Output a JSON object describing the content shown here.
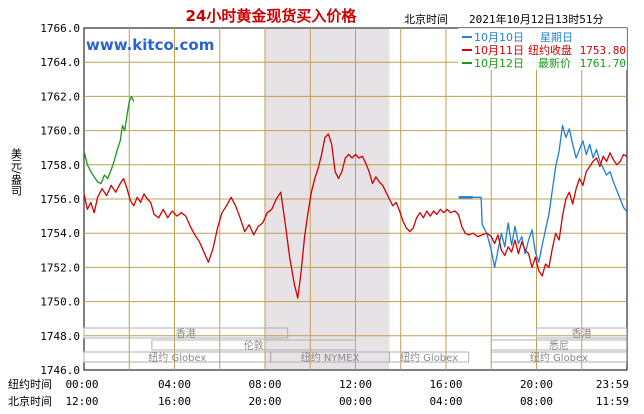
{
  "chart_data": {
    "type": "line",
    "title": "24小时黄金现货买入价格",
    "timezone_label": "北京时间",
    "timestamp": "2021年10月12日13时51分",
    "watermark": "www.kitco.com",
    "ylabel": "美元/盎司",
    "ylim": [
      1746.0,
      1766.0
    ],
    "y_ticks": [
      "1766.0",
      "1764.0",
      "1762.0",
      "1760.0",
      "1758.0",
      "1756.0",
      "1754.0",
      "1752.0",
      "1750.0",
      "1748.0",
      "1746.0"
    ],
    "x_label_ny": "纽约时间",
    "x_ticks_ny": [
      "00:00",
      "04:00",
      "08:00",
      "12:00",
      "16:00",
      "20:00",
      "23:59"
    ],
    "x_label_bj": "北京时间",
    "x_ticks_bj": [
      "12:00",
      "16:00",
      "20:00",
      "00:00",
      "04:00",
      "08:00",
      "11:59"
    ],
    "grid": true,
    "legend_position": "top-right",
    "colors": {
      "series1": "#1f7fd6",
      "series2": "#d40000",
      "series3": "#1a9a1a",
      "watermark": "#2a62d8",
      "title": "#cc0000",
      "shade": "#e6e2e6",
      "grid": "#bfa050"
    },
    "legend": [
      {
        "date": "10月10日",
        "text": "星期日",
        "value": ""
      },
      {
        "date": "10月11日",
        "text": "纽约收盘",
        "value": "1753.80"
      },
      {
        "date": "10月12日",
        "text": "最新价",
        "value": "1761.70"
      }
    ],
    "markets": [
      {
        "name": "香港",
        "row": 0,
        "start": 0.0,
        "end": 9.0
      },
      {
        "name": "伦敦",
        "row": 1,
        "start": 3.0,
        "end": 12.0
      },
      {
        "name": "纽约 NYMEX",
        "row": 2,
        "start": 8.25,
        "end": 13.5
      },
      {
        "name": "纽约 Globex",
        "row": 2,
        "start": 0.0,
        "end": 8.25
      },
      {
        "name": "纽约 Globex",
        "row": 2,
        "start": 13.5,
        "end": 17.0
      },
      {
        "name": "香港",
        "row": 0,
        "start": 20.0,
        "end": 23.98
      },
      {
        "name": "悉尼",
        "row": 1,
        "start": 18.0,
        "end": 23.98
      },
      {
        "name": "纽约 Globex",
        "row": 2,
        "start": 18.0,
        "end": 23.98
      }
    ],
    "shaded_range": [
      8.0,
      13.5
    ],
    "series": [
      {
        "name": "10月10日",
        "points": [
          [
            17.0,
            1756.1
          ],
          [
            17.2,
            1756.1
          ],
          [
            17.4,
            1756.1
          ],
          [
            17.55,
            1756.1
          ],
          [
            17.6,
            1754.5
          ],
          [
            17.8,
            1754.0
          ],
          [
            18.0,
            1753.0
          ],
          [
            18.15,
            1752.0
          ],
          [
            18.3,
            1753.0
          ],
          [
            18.45,
            1754.0
          ],
          [
            18.6,
            1753.2
          ],
          [
            18.75,
            1754.6
          ],
          [
            18.9,
            1753.3
          ],
          [
            19.05,
            1754.4
          ],
          [
            19.2,
            1753.4
          ],
          [
            19.35,
            1753.8
          ],
          [
            19.5,
            1752.8
          ],
          [
            19.65,
            1753.6
          ],
          [
            19.8,
            1754.2
          ],
          [
            19.95,
            1752.9
          ],
          [
            20.1,
            1752.3
          ],
          [
            20.25,
            1753.3
          ],
          [
            20.4,
            1754.2
          ],
          [
            20.55,
            1755.1
          ],
          [
            20.7,
            1756.5
          ],
          [
            20.85,
            1757.9
          ],
          [
            21.0,
            1758.8
          ],
          [
            21.15,
            1760.3
          ],
          [
            21.3,
            1759.6
          ],
          [
            21.45,
            1760.1
          ],
          [
            21.6,
            1759.2
          ],
          [
            21.75,
            1758.4
          ],
          [
            21.9,
            1758.9
          ],
          [
            22.05,
            1759.4
          ],
          [
            22.2,
            1758.6
          ],
          [
            22.35,
            1759.2
          ],
          [
            22.5,
            1758.4
          ],
          [
            22.65,
            1758.9
          ],
          [
            22.8,
            1758.2
          ],
          [
            22.95,
            1757.8
          ],
          [
            23.1,
            1757.4
          ],
          [
            23.25,
            1757.6
          ],
          [
            23.4,
            1757.0
          ],
          [
            23.55,
            1756.5
          ],
          [
            23.7,
            1756.0
          ],
          [
            23.85,
            1755.5
          ],
          [
            23.98,
            1755.3
          ]
        ]
      },
      {
        "name": "10月11日",
        "points": [
          [
            0.0,
            1756.3
          ],
          [
            0.15,
            1755.4
          ],
          [
            0.3,
            1755.8
          ],
          [
            0.45,
            1755.2
          ],
          [
            0.6,
            1756.1
          ],
          [
            0.8,
            1756.6
          ],
          [
            1.0,
            1756.2
          ],
          [
            1.2,
            1756.8
          ],
          [
            1.4,
            1756.4
          ],
          [
            1.6,
            1756.9
          ],
          [
            1.75,
            1757.2
          ],
          [
            1.9,
            1756.6
          ],
          [
            2.05,
            1755.9
          ],
          [
            2.2,
            1755.6
          ],
          [
            2.35,
            1756.1
          ],
          [
            2.5,
            1755.8
          ],
          [
            2.65,
            1756.3
          ],
          [
            2.8,
            1756.0
          ],
          [
            2.95,
            1755.8
          ],
          [
            3.1,
            1755.1
          ],
          [
            3.3,
            1754.9
          ],
          [
            3.5,
            1755.4
          ],
          [
            3.7,
            1754.9
          ],
          [
            3.9,
            1755.3
          ],
          [
            4.1,
            1755.0
          ],
          [
            4.3,
            1755.2
          ],
          [
            4.5,
            1755.0
          ],
          [
            4.7,
            1754.4
          ],
          [
            4.9,
            1753.9
          ],
          [
            5.1,
            1753.5
          ],
          [
            5.3,
            1752.9
          ],
          [
            5.5,
            1752.3
          ],
          [
            5.7,
            1753.1
          ],
          [
            5.9,
            1754.3
          ],
          [
            6.1,
            1755.2
          ],
          [
            6.3,
            1755.6
          ],
          [
            6.5,
            1756.1
          ],
          [
            6.7,
            1755.6
          ],
          [
            6.9,
            1754.9
          ],
          [
            7.1,
            1754.1
          ],
          [
            7.3,
            1754.5
          ],
          [
            7.5,
            1753.9
          ],
          [
            7.7,
            1754.4
          ],
          [
            7.9,
            1754.6
          ],
          [
            8.1,
            1755.2
          ],
          [
            8.3,
            1755.4
          ],
          [
            8.5,
            1756.0
          ],
          [
            8.7,
            1756.4
          ],
          [
            8.9,
            1754.5
          ],
          [
            9.1,
            1752.5
          ],
          [
            9.3,
            1751.0
          ],
          [
            9.45,
            1750.2
          ],
          [
            9.6,
            1751.8
          ],
          [
            9.75,
            1753.8
          ],
          [
            9.9,
            1755.2
          ],
          [
            10.05,
            1756.4
          ],
          [
            10.2,
            1757.2
          ],
          [
            10.35,
            1757.8
          ],
          [
            10.5,
            1758.6
          ],
          [
            10.65,
            1759.6
          ],
          [
            10.8,
            1759.8
          ],
          [
            10.95,
            1759.2
          ],
          [
            11.1,
            1757.6
          ],
          [
            11.25,
            1757.2
          ],
          [
            11.4,
            1757.6
          ],
          [
            11.55,
            1758.4
          ],
          [
            11.7,
            1758.6
          ],
          [
            11.85,
            1758.4
          ],
          [
            12.0,
            1758.6
          ],
          [
            12.15,
            1758.4
          ],
          [
            12.3,
            1758.5
          ],
          [
            12.45,
            1758.1
          ],
          [
            12.6,
            1757.6
          ],
          [
            12.75,
            1756.9
          ],
          [
            12.9,
            1757.3
          ],
          [
            13.05,
            1757.0
          ],
          [
            13.2,
            1756.8
          ],
          [
            13.35,
            1756.4
          ],
          [
            13.5,
            1756.0
          ],
          [
            13.65,
            1755.6
          ],
          [
            13.8,
            1755.8
          ],
          [
            13.95,
            1755.3
          ],
          [
            14.1,
            1754.7
          ],
          [
            14.25,
            1754.3
          ],
          [
            14.4,
            1754.1
          ],
          [
            14.55,
            1754.3
          ],
          [
            14.7,
            1754.9
          ],
          [
            14.85,
            1755.2
          ],
          [
            15.0,
            1754.9
          ],
          [
            15.15,
            1755.3
          ],
          [
            15.3,
            1755.0
          ],
          [
            15.45,
            1755.3
          ],
          [
            15.6,
            1755.1
          ],
          [
            15.75,
            1755.4
          ],
          [
            15.9,
            1755.2
          ],
          [
            16.05,
            1755.4
          ],
          [
            16.2,
            1755.2
          ],
          [
            16.4,
            1755.3
          ],
          [
            16.55,
            1755.1
          ],
          [
            16.7,
            1754.4
          ],
          [
            16.85,
            1754.0
          ],
          [
            17.0,
            1753.9
          ],
          [
            17.2,
            1754.0
          ],
          [
            17.4,
            1753.8
          ],
          [
            17.6,
            1753.9
          ],
          [
            17.8,
            1754.0
          ],
          [
            18.0,
            1753.8
          ],
          [
            18.15,
            1753.4
          ],
          [
            18.3,
            1753.9
          ],
          [
            18.45,
            1753.0
          ],
          [
            18.6,
            1752.7
          ],
          [
            18.75,
            1753.2
          ],
          [
            18.9,
            1752.9
          ],
          [
            19.05,
            1753.6
          ],
          [
            19.2,
            1752.8
          ],
          [
            19.35,
            1753.5
          ],
          [
            19.5,
            1753.0
          ],
          [
            19.65,
            1752.8
          ],
          [
            19.8,
            1752.0
          ],
          [
            19.95,
            1752.6
          ],
          [
            20.1,
            1751.8
          ],
          [
            20.25,
            1751.5
          ],
          [
            20.4,
            1752.2
          ],
          [
            20.55,
            1752.0
          ],
          [
            20.7,
            1753.1
          ],
          [
            20.85,
            1754.0
          ],
          [
            21.0,
            1753.6
          ],
          [
            21.15,
            1755.0
          ],
          [
            21.3,
            1756.0
          ],
          [
            21.45,
            1756.4
          ],
          [
            21.6,
            1755.7
          ],
          [
            21.75,
            1756.6
          ],
          [
            21.9,
            1757.2
          ],
          [
            22.05,
            1756.8
          ],
          [
            22.2,
            1757.6
          ],
          [
            22.35,
            1757.9
          ],
          [
            22.5,
            1758.2
          ],
          [
            22.65,
            1758.4
          ],
          [
            22.8,
            1757.9
          ],
          [
            22.95,
            1758.5
          ],
          [
            23.1,
            1758.2
          ],
          [
            23.25,
            1758.7
          ],
          [
            23.4,
            1758.3
          ],
          [
            23.55,
            1758.0
          ],
          [
            23.7,
            1758.2
          ],
          [
            23.85,
            1758.6
          ],
          [
            23.98,
            1758.5
          ]
        ]
      },
      {
        "name": "10月12日",
        "points": [
          [
            0.0,
            1758.8
          ],
          [
            0.15,
            1758.0
          ],
          [
            0.3,
            1757.6
          ],
          [
            0.45,
            1757.3
          ],
          [
            0.6,
            1757.0
          ],
          [
            0.75,
            1756.9
          ],
          [
            0.9,
            1757.4
          ],
          [
            1.05,
            1757.2
          ],
          [
            1.2,
            1757.7
          ],
          [
            1.35,
            1758.3
          ],
          [
            1.5,
            1759.0
          ],
          [
            1.6,
            1759.4
          ],
          [
            1.7,
            1760.3
          ],
          [
            1.8,
            1760.0
          ],
          [
            1.9,
            1760.9
          ],
          [
            2.0,
            1761.7
          ],
          [
            2.1,
            1762.0
          ],
          [
            2.2,
            1761.7
          ]
        ]
      }
    ]
  }
}
